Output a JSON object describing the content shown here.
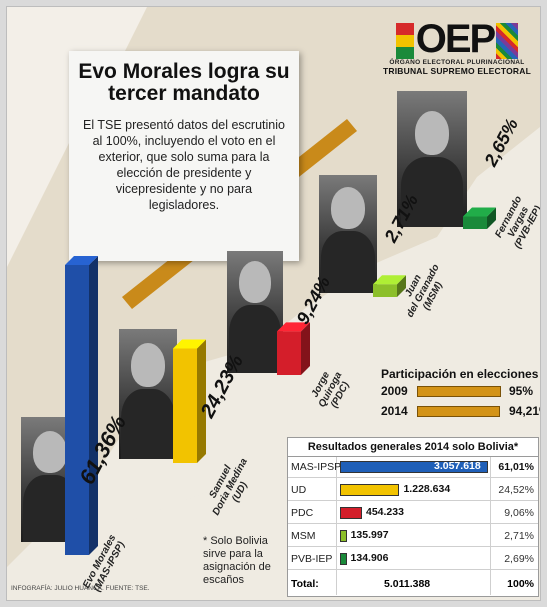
{
  "logo": {
    "letters": "OEP",
    "org_line": "ÓRGANO ELECTORAL PLURINACIONAL",
    "tribunal_line": "TRIBUNAL SUPREMO ELECTORAL",
    "flag_colors": [
      "#d62a2a",
      "#f2c300",
      "#1a8a3a"
    ]
  },
  "headline": {
    "title": "Evo Morales logra su tercer mandato",
    "body": "El TSE presentó datos del escrutinio al 100%, incluyendo el voto en el exterior, que solo suma para la elección de presidente y vicepresidente y no para legisladores."
  },
  "chart_data": [
    {
      "type": "bar",
      "categories": [
        "Evo Morales (MAS-IPSP)",
        "Samuel Doria Medina (UD)",
        "Jorge Quiroga (PDC)",
        "Juan del Granado (MSM)",
        "Fernando Vargas (PVB-IEP)"
      ],
      "values": [
        61.36,
        24.23,
        9.24,
        2.71,
        2.65
      ],
      "labels": [
        "61,36%",
        "24,23%",
        "9,24%",
        "2,71%",
        "2,65%"
      ],
      "colors": [
        "#1f4fa8",
        "#f2c300",
        "#d41e2a",
        "#8cbf2a",
        "#1a8a3a"
      ],
      "candidates": [
        {
          "name_1": "Evo Morales",
          "name_2": "(MAS-IPSP)"
        },
        {
          "name_1": "Samuel",
          "name_2": "Doria Medina",
          "name_3": "(UD)"
        },
        {
          "name_1": "Jorge",
          "name_2": "Quiroga",
          "name_3": "(PDC)"
        },
        {
          "name_1": "Juan",
          "name_2": "del Granado",
          "name_3": "(MSM)"
        },
        {
          "name_1": "Fernando",
          "name_2": "Vargas",
          "name_3": "(PVB-IEP)"
        }
      ]
    },
    {
      "type": "bar",
      "title": "Participación en elecciones",
      "categories": [
        "2009",
        "2014"
      ],
      "values": [
        95,
        94.21
      ],
      "labels": [
        "95%",
        "94,21%"
      ],
      "color": "#d39317"
    },
    {
      "type": "table",
      "title": "Resultados generales 2014 solo Bolivia*",
      "rows": [
        {
          "party": "MAS-IPSP",
          "votes": 3057618,
          "votes_label": "3.057.618",
          "pct": "61,01%",
          "color": "#1f5fb8"
        },
        {
          "party": "UD",
          "votes": 1228634,
          "votes_label": "1.228.634",
          "pct": "24,52%",
          "color": "#f2c300"
        },
        {
          "party": "PDC",
          "votes": 454233,
          "votes_label": "454.233",
          "pct": "9,06%",
          "color": "#d41e2a"
        },
        {
          "party": "MSM",
          "votes": 135997,
          "votes_label": "135.997",
          "pct": "2,71%",
          "color": "#8cbf2a"
        },
        {
          "party": "PVB-IEP",
          "votes": 134906,
          "votes_label": "134.906",
          "pct": "2,69%",
          "color": "#1a8a3a"
        }
      ],
      "total_label": "Total:",
      "total_votes": "5.011.388",
      "total_pct": "100%"
    }
  ],
  "footnote": "* Solo Bolivia sirve para la asignación de escaños",
  "credit": "INFOGRAFÍA: JULIO HUANCA. FUENTE: TSE."
}
